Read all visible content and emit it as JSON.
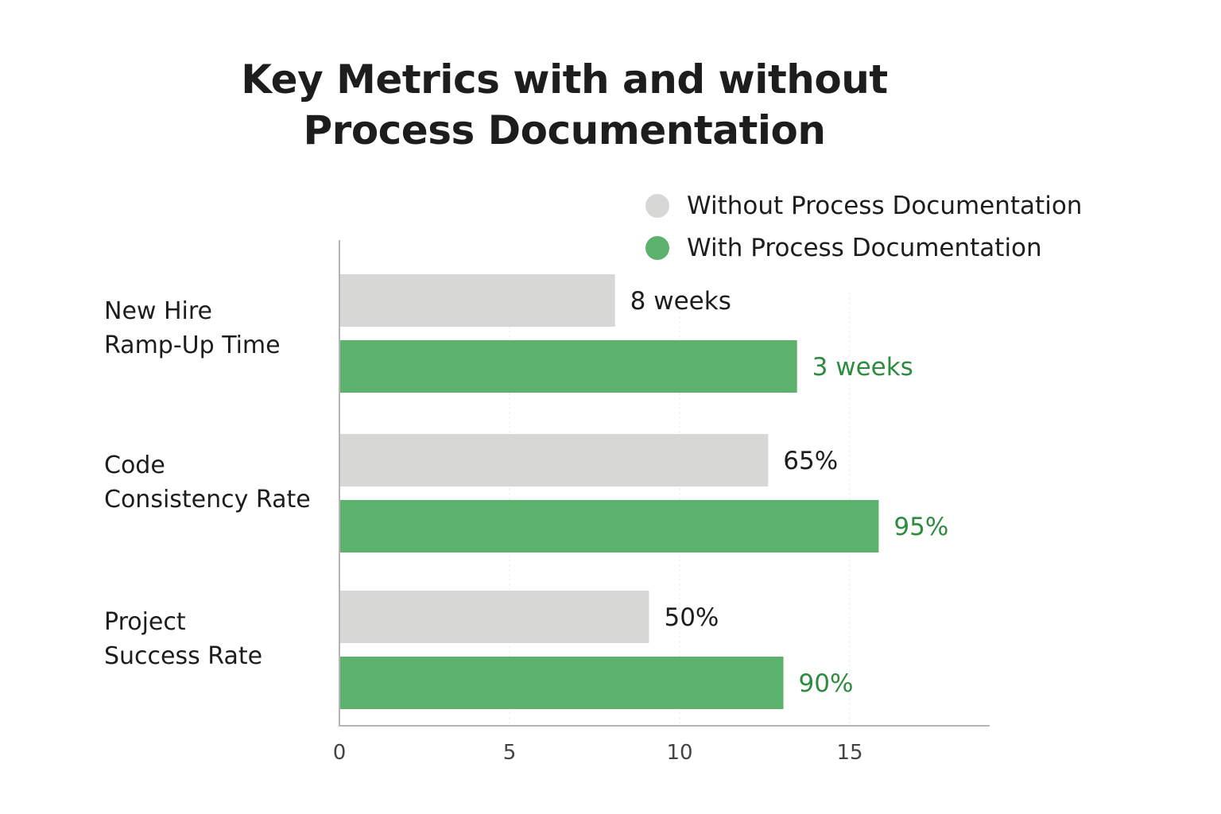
{
  "chart_data": {
    "type": "bar",
    "orientation": "horizontal",
    "title": "Key Metrics with and without Process Documentation",
    "categories": [
      "New Hire Ramp-Up Time",
      "Code Consistency Rate",
      "Project Success Rate"
    ],
    "category_lines": [
      [
        "New Hire",
        "Ramp-Up Time"
      ],
      [
        "Code",
        "Consistency Rate"
      ],
      [
        "Project",
        "Success Rate"
      ]
    ],
    "series": [
      {
        "name": "Without Process Documentation",
        "color": "#d7d7d5",
        "label_color": "#1d1d1d",
        "values": [
          8.1,
          12.6,
          9.1
        ],
        "labels": [
          "8 weeks",
          "65%",
          "50%"
        ]
      },
      {
        "name": "With Process Documentation",
        "color": "#5cb26c",
        "label_color": "#2e8b3f",
        "values": [
          13.45,
          15.85,
          13.05
        ],
        "labels": [
          "3 weeks",
          "95%",
          "90%"
        ]
      }
    ],
    "xlim": [
      0,
      19.2
    ],
    "xticks": [
      0,
      5,
      10,
      15
    ],
    "grid": true,
    "legend_position": "top-right"
  }
}
